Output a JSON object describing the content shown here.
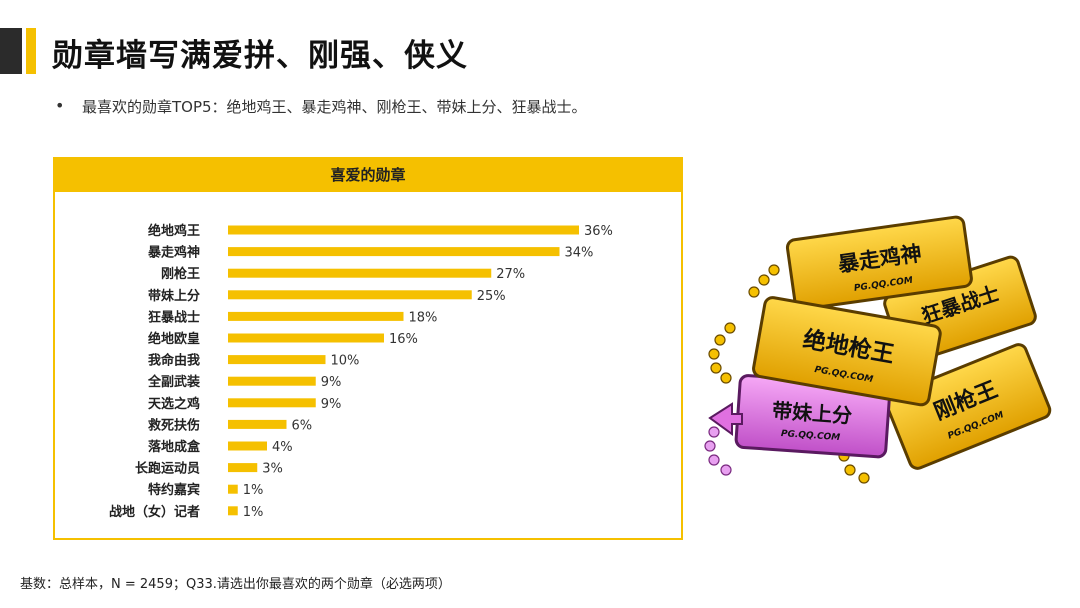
{
  "page": {
    "title": "勋章墙写满爱拼、刚强、侠义",
    "bullet": "•",
    "summary": "最喜欢的勋章TOP5：绝地鸡王、暴走鸡神、刚枪王、带妹上分、狂暴战士。",
    "footnote": "基数：总样本，N = 2459；Q33.请选出你最喜欢的两个勋章（必选两项）",
    "accent_color": "#f5c000",
    "dark_color": "#2b2b2b"
  },
  "chart_data": {
    "type": "bar",
    "orientation": "horizontal",
    "title": "喜爱的勋章",
    "categories": [
      "绝地鸡王",
      "暴走鸡神",
      "刚枪王",
      "带妹上分",
      "狂暴战士",
      "绝地欧皇",
      "我命由我",
      "全副武装",
      "天选之鸡",
      "救死扶伤",
      "落地成盒",
      "长跑运动员",
      "特约嘉宾",
      "战地（女）记者"
    ],
    "values": [
      36,
      34,
      27,
      25,
      18,
      16,
      10,
      9,
      9,
      6,
      4,
      3,
      1,
      1
    ],
    "value_labels": [
      "36%",
      "34%",
      "27%",
      "25%",
      "18%",
      "16%",
      "10%",
      "9%",
      "9%",
      "6%",
      "4%",
      "3%",
      "1%",
      "1%"
    ],
    "xlim": [
      0,
      40
    ],
    "grid": false,
    "bar_color": "#f5c000"
  },
  "badges": {
    "url": "PG.QQ.COM",
    "names": [
      "暴走鸡神",
      "狂暴战士",
      "绝地枪王",
      "带妹上分",
      "刚枪王"
    ],
    "gold_color": "#f2b705",
    "pink_color": "#e070e0"
  }
}
